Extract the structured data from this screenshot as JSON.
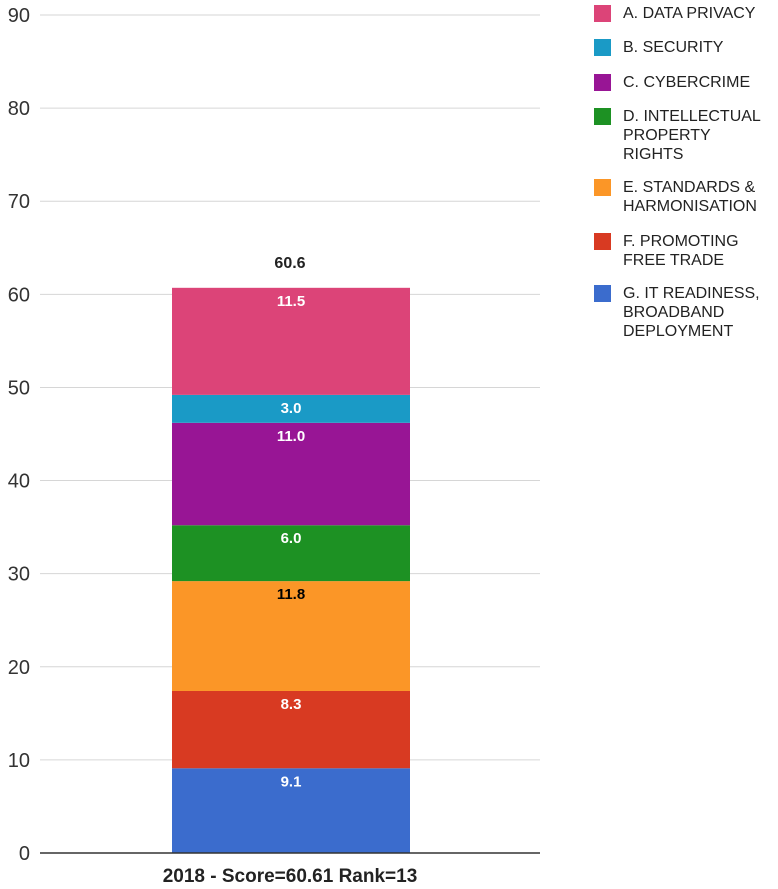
{
  "chart_data": {
    "type": "bar",
    "stacked": true,
    "categories": [
      "2018 - Score=60.61 Rank=13"
    ],
    "series": [
      {
        "name": "G. IT READINESS, BROADBAND DEPLOYMENT",
        "values": [
          9.1
        ],
        "color": "#3b6ccd",
        "label_color": "#ffffff"
      },
      {
        "name": "F. PROMOTING FREE TRADE",
        "values": [
          8.3
        ],
        "color": "#d83a22",
        "label_color": "#ffffff"
      },
      {
        "name": "E. STANDARDS & HARMONISATION",
        "values": [
          11.8
        ],
        "color": "#fb9627",
        "label_color": "#000000"
      },
      {
        "name": "D. INTELLECTUAL PROPERTY RIGHTS",
        "values": [
          6.0
        ],
        "color": "#1d9123",
        "label_color": "#ffffff"
      },
      {
        "name": "C. CYBERCRIME",
        "values": [
          11.0
        ],
        "color": "#981595",
        "label_color": "#ffffff"
      },
      {
        "name": "B. SECURITY",
        "values": [
          3.0
        ],
        "color": "#1a9ac6",
        "label_color": "#ffffff"
      },
      {
        "name": "A. DATA PRIVACY",
        "values": [
          11.5
        ],
        "color": "#dc4478",
        "label_color": "#ffffff"
      }
    ],
    "data_labels": [
      "9.1",
      "8.3",
      "11.8",
      "6.0",
      "11.0",
      "3.0",
      "11.5"
    ],
    "total_label": "60.6",
    "y_ticks": [
      "0",
      "10",
      "20",
      "30",
      "40",
      "50",
      "60",
      "70",
      "80",
      "90"
    ],
    "ylim": [
      0,
      90
    ],
    "grid": true,
    "legend_position": "right",
    "title": "",
    "xlabel": "",
    "ylabel": ""
  },
  "legend": {
    "items": [
      {
        "label": "A. DATA PRIVACY",
        "color": "#dc4478"
      },
      {
        "label": "B. SECURITY",
        "color": "#1a9ac6"
      },
      {
        "label": "C. CYBERCRIME",
        "color": "#981595"
      },
      {
        "label": "D. INTELLECTUAL PROPERTY RIGHTS",
        "color": "#1d9123"
      },
      {
        "label": "E. STANDARDS & HARMONISATION",
        "color": "#fb9627"
      },
      {
        "label": "F. PROMOTING FREE TRADE",
        "color": "#d83a22"
      },
      {
        "label": "G. IT READINESS, BROADBAND DEPLOYMENT",
        "color": "#3b6ccd"
      }
    ]
  }
}
